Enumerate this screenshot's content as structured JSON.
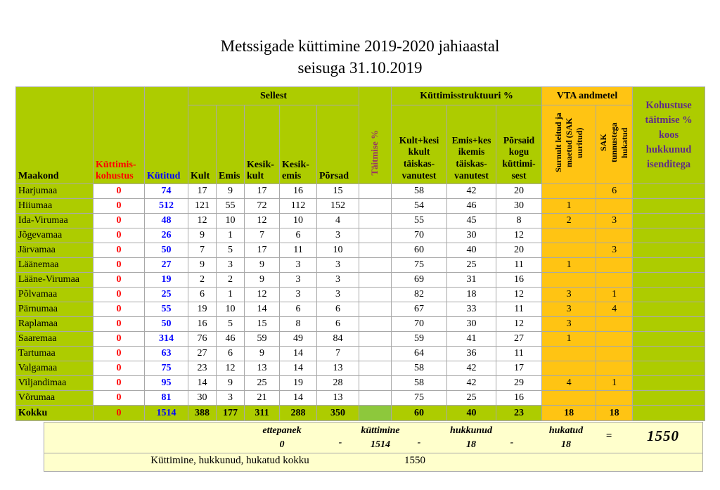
{
  "title": {
    "line1": "Metssigade küttimine 2019-2020 jahiaastal",
    "line2": "seisuga 31.10.2019"
  },
  "colors": {
    "green": "#ADCC00",
    "green2": "#8DC83C",
    "orange": "#FFC413",
    "cream": "#FFFFCC",
    "red": "#FF0000",
    "blue": "#0000FF",
    "purple": "#993366",
    "dkpurple": "#5F2B87"
  },
  "table": {
    "groups": {
      "sellest": "Sellest",
      "kyttimisstruktuuri": "Küttimisstruktuuri %",
      "vta": "VTA andmetel"
    },
    "columns": {
      "maakond": "Maakond",
      "kohustus": "Küttimis-kohustus",
      "kytitud": "Kütitud",
      "kult": "Kult",
      "emis": "Emis",
      "kesik_kult": "Kesik-kult",
      "kesik_emis": "Kesik-emis",
      "porsad": "Põrsad",
      "taitmise": "Täitmise %",
      "struct1": "Kult+kesi kkult täiskas-vanutest",
      "struct2": "Emis+kes ikemis täiskas-vanutest",
      "struct3": "Põrsaid kogu küttimi-sest",
      "vta1": "Surnult leitud ja maetud (SAK uuritud)",
      "vta2": "SAK tunnustega hukatud",
      "kohustuse": "Kohustuse täitmise % koos hukkunud isenditega"
    },
    "rows": [
      {
        "maakond": "Harjumaa",
        "values": [
          "0",
          "74",
          "17",
          "9",
          "17",
          "16",
          "15",
          "",
          "58",
          "42",
          "20",
          "",
          "6",
          ""
        ]
      },
      {
        "maakond": "Hiiumaa",
        "values": [
          "0",
          "512",
          "121",
          "55",
          "72",
          "112",
          "152",
          "",
          "54",
          "46",
          "30",
          "1",
          "",
          ""
        ]
      },
      {
        "maakond": "Ida-Virumaa",
        "values": [
          "0",
          "48",
          "12",
          "10",
          "12",
          "10",
          "4",
          "",
          "55",
          "45",
          "8",
          "2",
          "3",
          ""
        ]
      },
      {
        "maakond": "Jõgevamaa",
        "values": [
          "0",
          "26",
          "9",
          "1",
          "7",
          "6",
          "3",
          "",
          "70",
          "30",
          "12",
          "",
          "",
          ""
        ]
      },
      {
        "maakond": "Järvamaa",
        "values": [
          "0",
          "50",
          "7",
          "5",
          "17",
          "11",
          "10",
          "",
          "60",
          "40",
          "20",
          "",
          "3",
          ""
        ]
      },
      {
        "maakond": "Läänemaa",
        "values": [
          "0",
          "27",
          "9",
          "3",
          "9",
          "3",
          "3",
          "",
          "75",
          "25",
          "11",
          "1",
          "",
          ""
        ]
      },
      {
        "maakond": "Lääne-Virumaa",
        "values": [
          "0",
          "19",
          "2",
          "2",
          "9",
          "3",
          "3",
          "",
          "69",
          "31",
          "16",
          "",
          "",
          ""
        ]
      },
      {
        "maakond": "Põlvamaa",
        "values": [
          "0",
          "25",
          "6",
          "1",
          "12",
          "3",
          "3",
          "",
          "82",
          "18",
          "12",
          "3",
          "1",
          ""
        ]
      },
      {
        "maakond": "Pärnumaa",
        "values": [
          "0",
          "55",
          "19",
          "10",
          "14",
          "6",
          "6",
          "",
          "67",
          "33",
          "11",
          "3",
          "4",
          ""
        ]
      },
      {
        "maakond": "Raplamaa",
        "values": [
          "0",
          "50",
          "16",
          "5",
          "15",
          "8",
          "6",
          "",
          "70",
          "30",
          "12",
          "3",
          "",
          ""
        ]
      },
      {
        "maakond": "Saaremaa",
        "values": [
          "0",
          "314",
          "76",
          "46",
          "59",
          "49",
          "84",
          "",
          "59",
          "41",
          "27",
          "1",
          "",
          ""
        ]
      },
      {
        "maakond": "Tartumaa",
        "values": [
          "0",
          "63",
          "27",
          "6",
          "9",
          "14",
          "7",
          "",
          "64",
          "36",
          "11",
          "",
          "",
          ""
        ]
      },
      {
        "maakond": "Valgamaa",
        "values": [
          "0",
          "75",
          "23",
          "12",
          "13",
          "14",
          "13",
          "",
          "58",
          "42",
          "17",
          "",
          "",
          ""
        ]
      },
      {
        "maakond": "Viljandimaa",
        "values": [
          "0",
          "95",
          "14",
          "9",
          "25",
          "19",
          "28",
          "",
          "58",
          "42",
          "29",
          "4",
          "1",
          ""
        ]
      },
      {
        "maakond": "Võrumaa",
        "values": [
          "0",
          "81",
          "30",
          "3",
          "21",
          "14",
          "13",
          "",
          "75",
          "25",
          "16",
          "",
          "",
          ""
        ]
      }
    ],
    "total": {
      "maakond": "Kokku",
      "values": [
        "0",
        "1514",
        "388",
        "177",
        "311",
        "288",
        "350",
        "",
        "60",
        "40",
        "23",
        "18",
        "18",
        ""
      ]
    }
  },
  "summary": {
    "ettepanek_label": "ettepanek",
    "ettepanek_value": "0",
    "dash1": "-",
    "kyttimine_label": "küttimine",
    "kyttimine_value": "1514",
    "dash2": "-",
    "hukkunud_label": "hukkunud",
    "hukkunud_value": "18",
    "dash3": "-",
    "hukatud_label": "hukatud",
    "hukatud_value": "18",
    "equals": "=",
    "result": "1550",
    "total_label": "Küttimine, hukkunud, hukatud kokku",
    "total_value": "1550"
  }
}
